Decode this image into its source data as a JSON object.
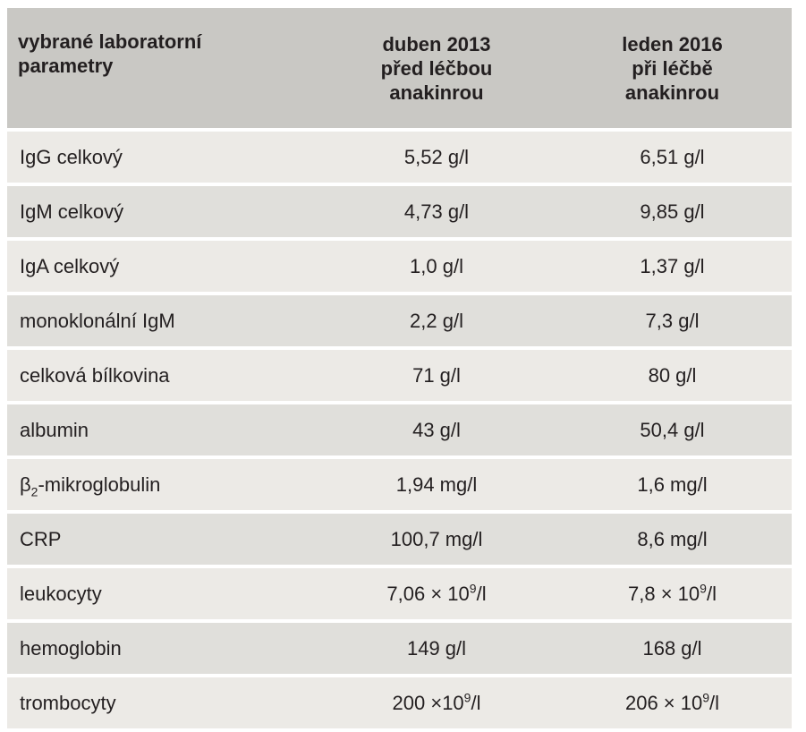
{
  "table": {
    "headers": {
      "param": [
        "vybrané laboratorní",
        "parametry"
      ],
      "col1": [
        "duben 2013",
        "před léčbou",
        "anakinrou"
      ],
      "col2": [
        "leden 2016",
        "při léčbě",
        "anakinrou"
      ]
    },
    "rows": [
      {
        "param": "IgG celkový",
        "v1": "5,52 g/l",
        "v2": "6,51 g/l"
      },
      {
        "param": "IgM celkový",
        "v1": "4,73 g/l",
        "v2": "9,85 g/l"
      },
      {
        "param": "IgA celkový",
        "v1": "1,0 g/l",
        "v2": "1,37 g/l"
      },
      {
        "param": "monoklonální IgM",
        "v1": "2,2 g/l",
        "v2": "7,3 g/l"
      },
      {
        "param": "celková bílkovina",
        "v1": "71 g/l",
        "v2": "80 g/l"
      },
      {
        "param": "albumin",
        "v1": "43 g/l",
        "v2": "50,4 g/l"
      },
      {
        "param_base": "β",
        "param_sub": "2",
        "param_rest": "-mikroglobulin",
        "v1": "1,94 mg/l",
        "v2": "1,6 mg/l"
      },
      {
        "param": "CRP",
        "v1": "100,7 mg/l",
        "v2": "8,6 mg/l"
      },
      {
        "param": "leukocyty",
        "v1_base": "7,06 × 10",
        "v1_sup": "9",
        "v1_unit": "/l",
        "v2_base": "7,8 × 10",
        "v2_sup": "9",
        "v2_unit": "/l"
      },
      {
        "param": "hemoglobin",
        "v1": "149 g/l",
        "v2": "168 g/l"
      },
      {
        "param": "trombocyty",
        "v1_base": "200 ×10",
        "v1_sup": "9",
        "v1_unit": "/l",
        "v2_base": "206 × 10",
        "v2_sup": "9",
        "v2_unit": "/l"
      }
    ]
  },
  "colors": {
    "header_bg": "#c9c8c4",
    "row_light": "#eceae6",
    "row_dark": "#e0dfdb",
    "text": "#231f20"
  }
}
